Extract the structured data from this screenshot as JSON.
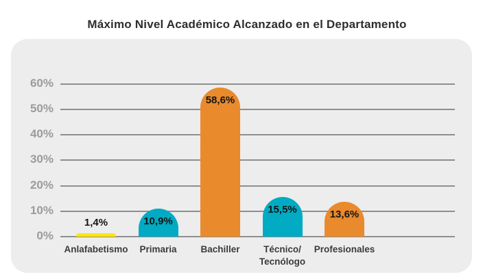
{
  "chart_data": {
    "type": "bar",
    "title": "Máximo Nivel Académico Alcanzado en el Departamento",
    "categories": [
      "Anlafabetismo",
      "Primaria",
      "Bachiller",
      "Técnico/\nTecnólogo",
      "Profesionales"
    ],
    "values": [
      1.4,
      10.9,
      58.6,
      15.5,
      13.6
    ],
    "value_labels": [
      "1,4%",
      "10,9%",
      "58,6%",
      "15,5%",
      "13,6%"
    ],
    "bar_colors": [
      "#ffe60a",
      "#00abc3",
      "#e98a2d",
      "#00abc3",
      "#e98a2d"
    ],
    "xlabel": "",
    "ylabel": "",
    "ylim": [
      0,
      60
    ],
    "yticks": [
      0,
      10,
      20,
      30,
      40,
      50,
      60
    ],
    "ytick_suffix": "%",
    "grid": true,
    "legend": false,
    "colors": {
      "background": "#ffffff",
      "panel_bg": "#ededed",
      "gridline": "#8e8e8e",
      "ytick_text": "#9b9b9b",
      "xtick_text": "#3b3b3b",
      "value_text": "#141414",
      "title_text": "#2d2d2d"
    }
  }
}
